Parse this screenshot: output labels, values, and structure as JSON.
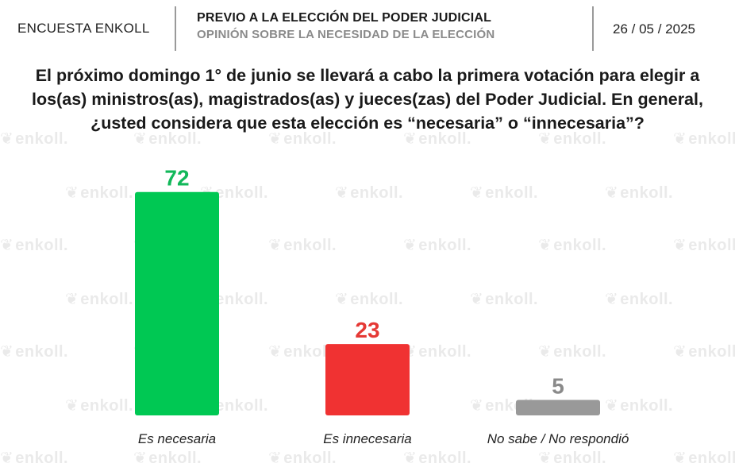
{
  "header": {
    "brand": "ENCUESTA ENKOLL",
    "title": "PREVIO A LA ELECCIÓN DEL PODER JUDICIAL",
    "subtitle": "OPINIÓN SOBRE LA NECESIDAD DE LA ELECCIÓN",
    "date": "26 / 05 / 2025"
  },
  "question": {
    "line1": "El próximo domingo 1° de junio se llevará a cabo la primera votación para elegir a",
    "line2": "los(as) ministros(as), magistrados(as) y jueces(zas) del Poder Judicial. En general,",
    "line3": "¿usted considera que esta elección es “necesaria” o “innecesaria”?"
  },
  "watermark": {
    "text": "enkoll."
  },
  "chart_data": {
    "type": "bar",
    "categories": [
      "Es necesaria",
      "Es innecesaria",
      "No sabe / No respondió"
    ],
    "values": [
      72,
      23,
      5
    ],
    "colors": [
      "#00c853",
      "#f03232",
      "#999999"
    ],
    "label_colors": [
      "#12b85a",
      "#e53935",
      "#8a8a8a"
    ],
    "ylim": [
      0,
      75
    ],
    "grid": false,
    "legend": "none"
  }
}
